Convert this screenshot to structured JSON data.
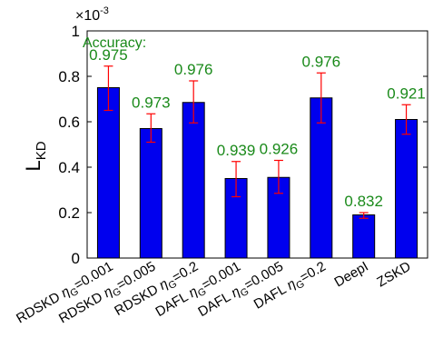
{
  "chart_data": {
    "type": "bar",
    "title": "",
    "xlabel": "",
    "ylabel": "L",
    "ylabel_sub": "KD",
    "ylim": [
      0,
      1
    ],
    "yticks": [
      0,
      0.2,
      0.4,
      0.6,
      0.8,
      1
    ],
    "ytick_labels": [
      "0",
      "0.2",
      "0.4",
      "0.6",
      "0.8",
      "1"
    ],
    "exponent_label": {
      "base": "×10",
      "power": "-3"
    },
    "grid": false,
    "annotation_title": "Accuracy:",
    "categories": [
      {
        "prefix": "RDSKD ",
        "eta": "η",
        "sub": "G",
        "suffix": "=0.001"
      },
      {
        "prefix": "RDSKD ",
        "eta": "η",
        "sub": "G",
        "suffix": "=0.005"
      },
      {
        "prefix": "RDSKD ",
        "eta": "η",
        "sub": "G",
        "suffix": "=0.2"
      },
      {
        "prefix": "DAFL ",
        "eta": "η",
        "sub": "G",
        "suffix": "=0.001"
      },
      {
        "prefix": "DAFL ",
        "eta": "η",
        "sub": "G",
        "suffix": "=0.005"
      },
      {
        "prefix": "DAFL ",
        "eta": "η",
        "sub": "G",
        "suffix": "=0.2"
      },
      {
        "prefix": "DeepI",
        "eta": "",
        "sub": "",
        "suffix": ""
      },
      {
        "prefix": "ZSKD",
        "eta": "",
        "sub": "",
        "suffix": ""
      }
    ],
    "series": [
      {
        "values": [
          0.75,
          0.57,
          0.685,
          0.35,
          0.355,
          0.705,
          0.19,
          0.61
        ],
        "error_low": [
          0.65,
          0.51,
          0.595,
          0.27,
          0.285,
          0.595,
          0.175,
          0.545
        ],
        "error_high": [
          0.845,
          0.635,
          0.78,
          0.425,
          0.43,
          0.815,
          0.2,
          0.675
        ],
        "accuracy_labels": [
          "0.975",
          "0.973",
          "0.976",
          "0.939",
          "0.926",
          "0.976",
          "0.832",
          "0.921"
        ]
      }
    ],
    "colors": {
      "bar": "#0000ee",
      "bar_edge": "#000000",
      "error_bar": "#ff0000",
      "accuracy_text": "#1a8a1a",
      "axis": "#000000"
    }
  }
}
